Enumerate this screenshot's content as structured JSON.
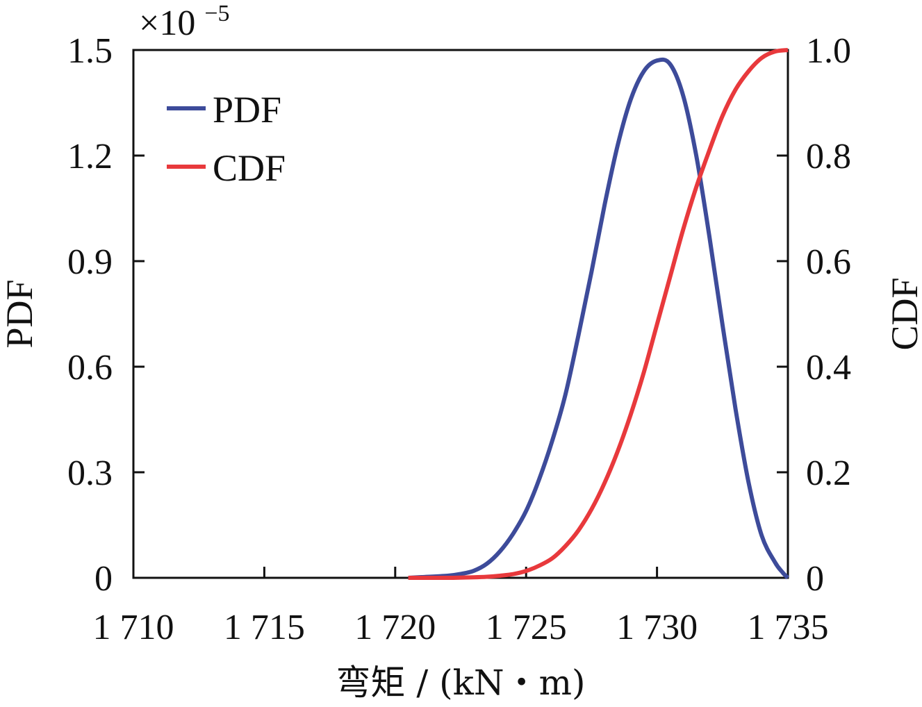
{
  "chart_data": {
    "type": "line",
    "xlabel": "弯矩 / (kN・m)",
    "ylabel_left": "PDF",
    "ylabel_right": "CDF",
    "y_left_multiplier": "×10",
    "y_left_multiplier_exp": "−5",
    "xlim": [
      1710,
      1735
    ],
    "ylim_left": [
      0,
      1.5
    ],
    "ylim_right": [
      0,
      1.0
    ],
    "x_ticks": [
      1710,
      1715,
      1720,
      1725,
      1730,
      1735
    ],
    "x_tick_labels": [
      "1 710",
      "1 715",
      "1 720",
      "1 725",
      "1 730",
      "1 735"
    ],
    "y_left_ticks": [
      0,
      0.3,
      0.6,
      0.9,
      1.2,
      1.5
    ],
    "y_left_tick_labels": [
      "0",
      "0.3",
      "0.6",
      "0.9",
      "1.2",
      "1.5"
    ],
    "y_right_ticks": [
      0,
      0.2,
      0.4,
      0.6,
      0.8,
      1.0
    ],
    "y_right_tick_labels": [
      "0",
      "0.2",
      "0.4",
      "0.6",
      "0.8",
      "1.0"
    ],
    "legend_position": "top-left",
    "grid": false,
    "series": [
      {
        "name": "PDF",
        "axis": "left",
        "color": "#3d4b9a",
        "x": [
          1720.5,
          1721,
          1722,
          1722.5,
          1723,
          1723.5,
          1724,
          1724.5,
          1725,
          1725.5,
          1726,
          1726.5,
          1727,
          1727.5,
          1728,
          1728.5,
          1729,
          1729.5,
          1730,
          1730.5,
          1731,
          1731.5,
          1732,
          1732.5,
          1733,
          1733.5,
          1734,
          1734.5,
          1734.8,
          1735
        ],
        "y": [
          0.0,
          0.002,
          0.006,
          0.011,
          0.02,
          0.04,
          0.075,
          0.125,
          0.19,
          0.28,
          0.39,
          0.52,
          0.69,
          0.87,
          1.06,
          1.23,
          1.36,
          1.44,
          1.47,
          1.46,
          1.37,
          1.2,
          0.97,
          0.72,
          0.48,
          0.27,
          0.12,
          0.045,
          0.015,
          0.0
        ]
      },
      {
        "name": "CDF",
        "axis": "right",
        "color": "#e8393c",
        "x": [
          1720.5,
          1722,
          1723,
          1723.5,
          1724,
          1724.5,
          1725,
          1725.5,
          1726,
          1726.5,
          1727,
          1727.5,
          1728,
          1728.5,
          1729,
          1729.5,
          1730,
          1730.5,
          1731,
          1731.5,
          1732,
          1732.5,
          1733,
          1733.5,
          1734,
          1734.5,
          1735
        ],
        "y": [
          0.0,
          0.0,
          0.001,
          0.002,
          0.004,
          0.007,
          0.013,
          0.023,
          0.037,
          0.06,
          0.09,
          0.13,
          0.18,
          0.24,
          0.31,
          0.39,
          0.48,
          0.57,
          0.66,
          0.74,
          0.81,
          0.875,
          0.925,
          0.96,
          0.985,
          0.997,
          1.0
        ]
      }
    ]
  }
}
